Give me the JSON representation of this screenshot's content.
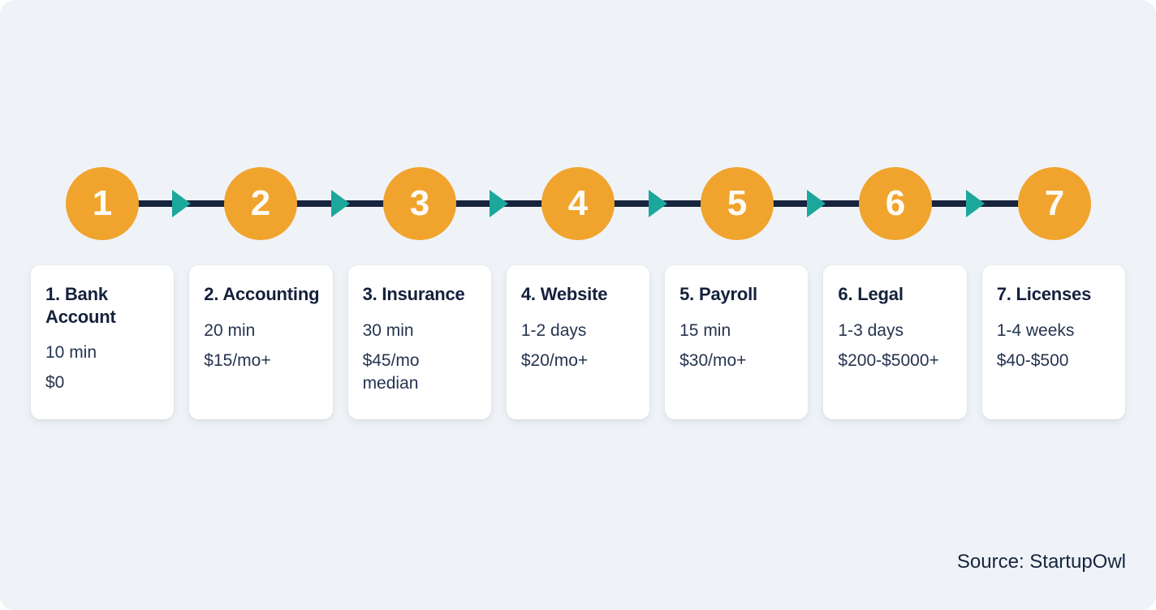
{
  "page": {
    "background_color": "#EFF3F7",
    "source_label": "Source: StartupOwl"
  },
  "colors": {
    "circle_orange": "#F0A42E",
    "arrow_teal": "#1CA79C",
    "line_navy": "#17243E",
    "title_navy": "#14213C",
    "body_navy": "#25344F",
    "card_background": "#FFFFFF"
  },
  "timeline": {
    "icon_names": [
      "arrow-right-icon"
    ]
  },
  "steps": [
    {
      "number": "1",
      "title": "1. Bank Account",
      "time": "10 min",
      "cost": "$0"
    },
    {
      "number": "2",
      "title": "2. Accounting",
      "time": "20 min",
      "cost": "$15/mo+"
    },
    {
      "number": "3",
      "title": "3. Insurance",
      "time": "30 min",
      "cost": "$45/mo median"
    },
    {
      "number": "4",
      "title": "4. Website",
      "time": "1-2 days",
      "cost": "$20/mo+"
    },
    {
      "number": "5",
      "title": "5. Payroll",
      "time": "15 min",
      "cost": "$30/mo+"
    },
    {
      "number": "6",
      "title": "6. Legal",
      "time": "1-3 days",
      "cost": "$200-$5000+"
    },
    {
      "number": "7",
      "title": "7. Licenses",
      "time": "1-4 weeks",
      "cost": "$40-$500"
    }
  ]
}
